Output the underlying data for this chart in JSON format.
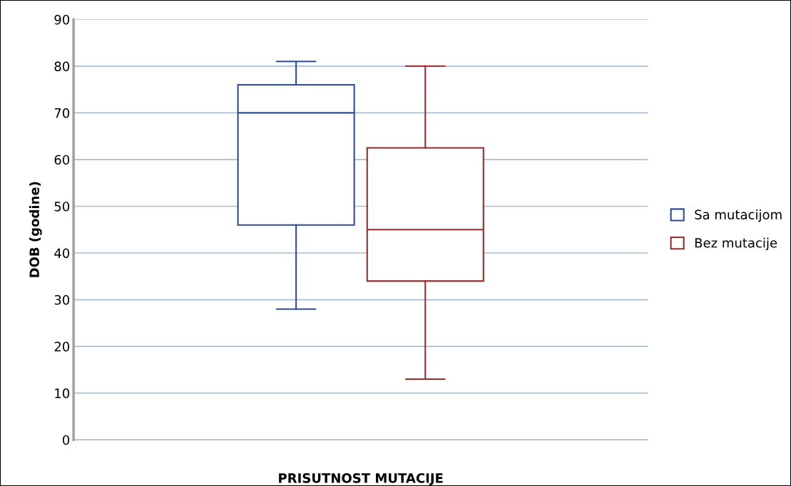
{
  "chart_data": {
    "type": "box",
    "xlabel": "PRISUTNOST MUTACIJE",
    "ylabel": "DOB (godine)",
    "categories": [
      null
    ],
    "series": [
      {
        "name": "Sa mutacijom",
        "color": "#2e4a9a",
        "boxes": [
          {
            "low": 28,
            "q1": 46,
            "median": 70,
            "q3": 76,
            "high": 81
          }
        ]
      },
      {
        "name": "Bez mutacije",
        "color": "#9b2a2a",
        "boxes": [
          {
            "low": 13,
            "q1": 34,
            "median": 45,
            "q3": 62.5,
            "high": 80
          }
        ]
      }
    ],
    "ylim": [
      0,
      90
    ],
    "yticks": [
      0,
      10,
      20,
      30,
      40,
      50,
      60,
      70,
      80,
      90
    ],
    "grid": "y",
    "legend": "right"
  }
}
